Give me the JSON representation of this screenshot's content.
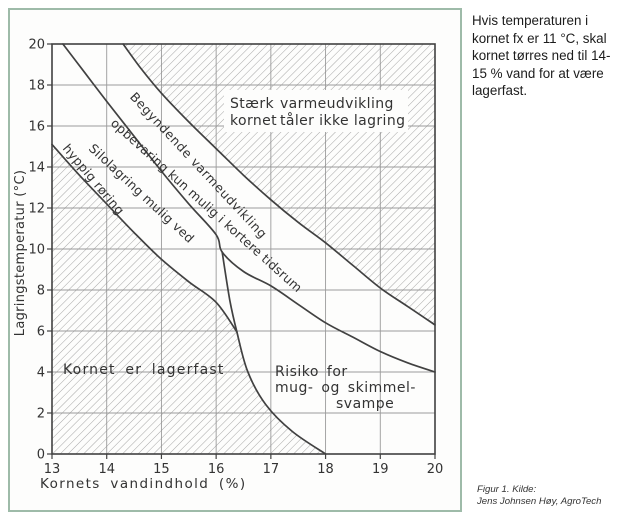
{
  "panel": {
    "border_color": "#9EBBA9"
  },
  "chart_data": {
    "type": "area",
    "title": "",
    "xlabel": "Kornets vandindhold (%)",
    "ylabel": "Lagringstemperatur (°C)",
    "xlim": [
      13,
      20
    ],
    "ylim": [
      0,
      20
    ],
    "grid": true,
    "legend": "none",
    "x_ticks": [
      13,
      14,
      15,
      16,
      17,
      18,
      19,
      20
    ],
    "y_ticks": [
      0,
      2,
      4,
      6,
      8,
      10,
      12,
      14,
      16,
      18,
      20
    ],
    "style": {
      "grid_color": "#9b9b9b",
      "curve_color": "#414141",
      "hatch_color": "#8f8f8f",
      "text_color": "#333333"
    },
    "curves": [
      {
        "name": "staerk-boundary",
        "points": [
          [
            14.3,
            20
          ],
          [
            14.6,
            18.9
          ],
          [
            15,
            17.6
          ],
          [
            15.5,
            16.2
          ],
          [
            16,
            14.9
          ],
          [
            16.5,
            13.6
          ],
          [
            17,
            12.4
          ],
          [
            17.5,
            11.3
          ],
          [
            18,
            10.3
          ],
          [
            18.5,
            9.2
          ],
          [
            19,
            8.1
          ],
          [
            19.5,
            7.2
          ],
          [
            20,
            6.3
          ]
        ]
      },
      {
        "name": "begyndende-boundary",
        "points": [
          [
            13.2,
            20
          ],
          [
            13.6,
            18.6
          ],
          [
            14,
            17.2
          ],
          [
            14.5,
            15.5
          ],
          [
            15,
            13.8
          ],
          [
            15.5,
            12.2
          ],
          [
            16,
            10.7
          ],
          [
            16.11,
            9.85
          ],
          [
            16.5,
            8.9
          ],
          [
            17,
            8.2
          ],
          [
            17.5,
            7.3
          ],
          [
            18,
            6.4
          ],
          [
            18.5,
            5.7
          ],
          [
            19,
            5.0
          ],
          [
            19.5,
            4.45
          ],
          [
            20,
            4.0
          ]
        ]
      },
      {
        "name": "lagerfast-boundary",
        "points": [
          [
            13,
            15.1
          ],
          [
            13.5,
            13.6
          ],
          [
            14,
            12.2
          ],
          [
            14.5,
            10.8
          ],
          [
            15,
            9.5
          ],
          [
            15.5,
            8.4
          ],
          [
            16,
            7.4
          ],
          [
            16.38,
            5.95
          ]
        ]
      },
      {
        "name": "mold-boundary",
        "points": [
          [
            16.11,
            9.85
          ],
          [
            16.25,
            7.5
          ],
          [
            16.38,
            5.95
          ],
          [
            16.58,
            4.0
          ],
          [
            16.91,
            2.4
          ],
          [
            17.39,
            1.1
          ],
          [
            18,
            0
          ]
        ]
      }
    ],
    "hatched_regions": [
      {
        "name": "staerk-region-hatch",
        "boundary": [
          [
            14.3,
            20
          ],
          [
            14.6,
            18.9
          ],
          [
            15,
            17.6
          ],
          [
            15.5,
            16.2
          ],
          [
            16,
            14.9
          ],
          [
            16.5,
            13.6
          ],
          [
            17,
            12.4
          ],
          [
            17.5,
            11.3
          ],
          [
            18,
            10.3
          ],
          [
            18.5,
            9.2
          ],
          [
            19,
            8.1
          ],
          [
            19.5,
            7.2
          ],
          [
            20,
            6.3
          ]
        ],
        "close": [
          [
            20,
            20
          ]
        ]
      },
      {
        "name": "lagerfast-region-hatch",
        "boundary": [
          [
            13,
            15.1
          ],
          [
            13.5,
            13.6
          ],
          [
            14,
            12.2
          ],
          [
            14.5,
            10.8
          ],
          [
            15,
            9.5
          ],
          [
            15.5,
            8.4
          ],
          [
            16,
            7.4
          ],
          [
            16.38,
            5.95
          ],
          [
            16.58,
            4.0
          ],
          [
            16.91,
            2.4
          ],
          [
            17.39,
            1.1
          ],
          [
            18,
            0
          ]
        ],
        "close": [
          [
            13,
            0
          ]
        ]
      }
    ],
    "region_labels": {
      "staerk_l1a": "Stærk",
      "staerk_l1b": "varmeudvikling",
      "staerk_l2a": "kornet",
      "staerk_l2b": "tåler ikke lagring",
      "band1_line1": "Begyndende varmeudvikling",
      "band1_line2": "opbevaring kun mulig i kortere tidsrum",
      "band2_line1": "Silolagring mulig ved",
      "band2_line2": "hyppig røring",
      "lagerfast": "Kornet er lagerfast",
      "risiko_line1": "Risiko for",
      "risiko_line2": "mug- og skimmel-",
      "risiko_line3": "svampe"
    }
  },
  "note": {
    "lines": [
      "Hvis temperaturen i",
      "kornet fx er 11 °C, skal",
      "kornet tørres ned til 14-",
      "15 % vand for at være",
      "lagerfast."
    ]
  },
  "caption": {
    "line1": "Figur 1. Kilde:",
    "line2": "Jens Johnsen Høy, AgroTech"
  }
}
